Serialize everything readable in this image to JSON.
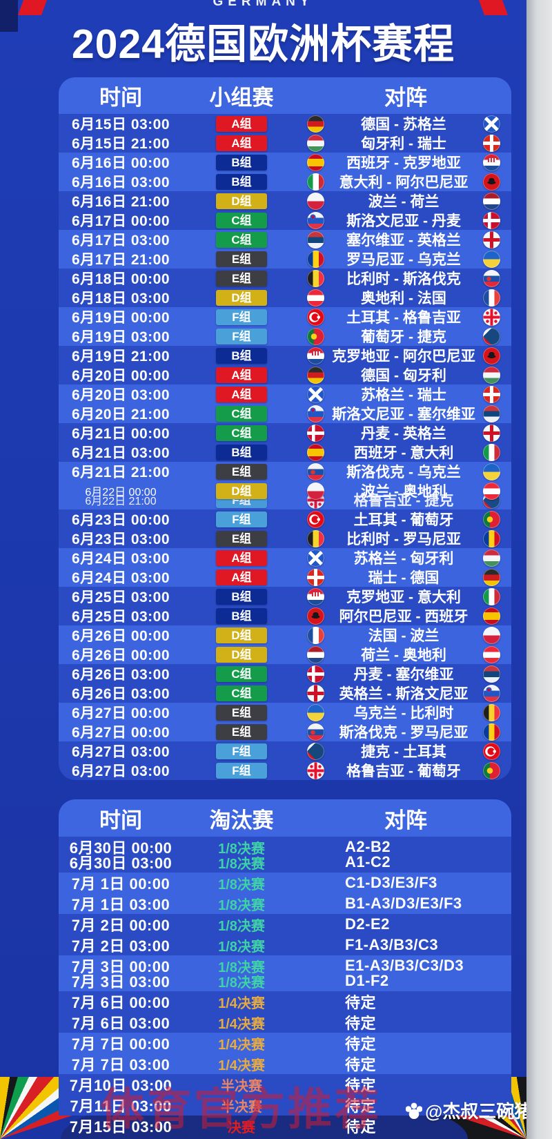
{
  "meta": {
    "germany_label": "GERMANY",
    "title": "2024德国欧洲杯赛程"
  },
  "colors": {
    "poster_blue": "#1c38ac",
    "panel_header_blue": "#3e66e0",
    "row_dark_blue": "#2a4bc4",
    "row_light_blue": "#3c64de",
    "accent_red": "#e01823"
  },
  "group_section": {
    "headers": [
      "时间",
      "小组赛",
      "对阵"
    ],
    "group_colors": {
      "A组": "#e01823",
      "B组": "#0c2b95",
      "C组": "#149c4b",
      "D组": "#d2b018",
      "E组": "#3d3d44",
      "F组": "#4aa0d8"
    },
    "rows": [
      {
        "time": "6月15日 03:00",
        "group": "A组",
        "match": "德国 - 苏格兰",
        "home": "germany",
        "away": "scotland"
      },
      {
        "time": "6月15日 21:00",
        "group": "A组",
        "match": "匈牙利 - 瑞士",
        "home": "hungary",
        "away": "switzerland"
      },
      {
        "time": "6月16日 00:00",
        "group": "B组",
        "match": "西班牙 - 克罗地亚",
        "home": "spain",
        "away": "croatia"
      },
      {
        "time": "6月16日 03:00",
        "group": "B组",
        "match": "意大利 - 阿尔巴尼亚",
        "home": "italy",
        "away": "albania"
      },
      {
        "time": "6月16日 21:00",
        "group": "D组",
        "match": "波兰 - 荷兰",
        "home": "poland",
        "away": "netherlands"
      },
      {
        "time": "6月17日 00:00",
        "group": "C组",
        "match": "斯洛文尼亚 - 丹麦",
        "home": "slovenia",
        "away": "denmark"
      },
      {
        "time": "6月17日 03:00",
        "group": "C组",
        "match": "塞尔维亚 - 英格兰",
        "home": "serbia",
        "away": "england"
      },
      {
        "time": "6月17日 21:00",
        "group": "E组",
        "match": "罗马尼亚 - 乌克兰",
        "home": "romania",
        "away": "ukraine"
      },
      {
        "time": "6月18日 00:00",
        "group": "E组",
        "match": "比利时 - 斯洛伐克",
        "home": "belgium",
        "away": "slovakia"
      },
      {
        "time": "6月18日 03:00",
        "group": "D组",
        "match": "奥地利 - 法国",
        "home": "austria",
        "away": "france"
      },
      {
        "time": "6月19日 00:00",
        "group": "F组",
        "match": "土耳其 - 格鲁吉亚",
        "home": "turkey",
        "away": "georgia"
      },
      {
        "time": "6月19日 03:00",
        "group": "F组",
        "match": "葡萄牙 - 捷克",
        "home": "portugal",
        "away": "czech"
      },
      {
        "time": "6月19日 21:00",
        "group": "B组",
        "match": "克罗地亚 - 阿尔巴尼亚",
        "home": "croatia",
        "away": "albania"
      },
      {
        "time": "6月20日 00:00",
        "group": "A组",
        "match": "德国 - 匈牙利",
        "home": "germany",
        "away": "hungary"
      },
      {
        "time": "6月20日 03:00",
        "group": "A组",
        "match": "苏格兰 - 瑞士",
        "home": "scotland",
        "away": "switzerland"
      },
      {
        "time": "6月20日 21:00",
        "group": "C组",
        "match": "斯洛文尼亚 - 塞尔维亚",
        "home": "slovenia",
        "away": "serbia"
      },
      {
        "time": "6月21日 00:00",
        "group": "C组",
        "match": "丹麦 - 英格兰",
        "home": "denmark",
        "away": "england"
      },
      {
        "time": "6月21日 03:00",
        "group": "B组",
        "match": "西班牙 - 意大利",
        "home": "spain",
        "away": "italy"
      },
      {
        "time": "6月21日 21:00",
        "group": "E组",
        "match": "斯洛伐克 - 乌克兰",
        "home": "slovakia",
        "away": "ukraine"
      },
      {
        "time": "6月22日 00:00",
        "group": "D组",
        "match": "波兰 - 奥地利",
        "home": "poland",
        "away": "austria",
        "overlay": {
          "time": "6月22日 21:00",
          "group": "F组",
          "match": "格鲁吉亚 - 捷克",
          "home": "georgia",
          "away": "czech"
        }
      },
      {
        "time": "6月23日 00:00",
        "group": "F组",
        "match": "土耳其 - 葡萄牙",
        "home": "turkey",
        "away": "portugal"
      },
      {
        "time": "6月23日 03:00",
        "group": "E组",
        "match": "比利时 - 罗马尼亚",
        "home": "belgium",
        "away": "romania"
      },
      {
        "time": "6月24日 03:00",
        "group": "A组",
        "match": "苏格兰 - 匈牙利",
        "home": "scotland",
        "away": "hungary"
      },
      {
        "time": "6月24日 03:00",
        "group": "A组",
        "match": "瑞士 - 德国",
        "home": "switzerland",
        "away": "germany"
      },
      {
        "time": "6月25日 03:00",
        "group": "B组",
        "match": "克罗地亚 - 意大利",
        "home": "croatia",
        "away": "italy"
      },
      {
        "time": "6月25日 03:00",
        "group": "B组",
        "match": "阿尔巴尼亚 - 西班牙",
        "home": "albania",
        "away": "spain"
      },
      {
        "time": "6月26日 00:00",
        "group": "D组",
        "match": "法国 - 波兰",
        "home": "france",
        "away": "poland"
      },
      {
        "time": "6月26日 00:00",
        "group": "D组",
        "match": "荷兰 - 奥地利",
        "home": "netherlands",
        "away": "austria"
      },
      {
        "time": "6月26日 03:00",
        "group": "C组",
        "match": "丹麦 - 塞尔维亚",
        "home": "denmark",
        "away": "serbia"
      },
      {
        "time": "6月26日 03:00",
        "group": "C组",
        "match": "英格兰 - 斯洛文尼亚",
        "home": "england",
        "away": "slovenia"
      },
      {
        "time": "6月27日 00:00",
        "group": "E组",
        "match": "乌克兰 - 比利时",
        "home": "ukraine",
        "away": "belgium"
      },
      {
        "time": "6月27日 00:00",
        "group": "E组",
        "match": "斯洛伐克 - 罗马尼亚",
        "home": "slovakia",
        "away": "romania"
      },
      {
        "time": "6月27日 03:00",
        "group": "F组",
        "match": "捷克 - 土耳其",
        "home": "czech",
        "away": "turkey"
      },
      {
        "time": "6月27日 03:00",
        "group": "F组",
        "match": "格鲁吉亚 - 葡萄牙",
        "home": "georgia",
        "away": "portugal"
      }
    ]
  },
  "knockout_section": {
    "headers": [
      "时间",
      "淘汰赛",
      "对阵"
    ],
    "stage_colors": {
      "r16": "#3ed2a6",
      "qf": "#e5ab43",
      "sf": "#e98465",
      "final": "#e31c1c"
    },
    "rows": [
      {
        "time": "6月30日 00:00",
        "stage": "1/8决赛",
        "stage_type": "r16",
        "opponent": "A2-B2"
      },
      {
        "time": "6月30日 03:00",
        "stage": "1/8决赛",
        "stage_type": "r16",
        "opponent": "A1-C2"
      },
      {
        "time": "7月 1日 00:00",
        "stage": "1/8决赛",
        "stage_type": "r16",
        "opponent": "C1-D3/E3/F3"
      },
      {
        "time": "7月 1日 03:00",
        "stage": "1/8决赛",
        "stage_type": "r16",
        "opponent": "B1-A3/D3/E3/F3"
      },
      {
        "time": "7月 2日 00:00",
        "stage": "1/8决赛",
        "stage_type": "r16",
        "opponent": "D2-E2"
      },
      {
        "time": "7月 2日 03:00",
        "stage": "1/8决赛",
        "stage_type": "r16",
        "opponent": "F1-A3/B3/C3"
      },
      {
        "time": "7月 3日 00:00",
        "stage": "1/8决赛",
        "stage_type": "r16",
        "opponent": "E1-A3/B3/C3/D3"
      },
      {
        "time": "7月 3日 03:00",
        "stage": "1/8决赛",
        "stage_type": "r16",
        "opponent": "D1-F2"
      },
      {
        "time": "7月 6日 00:00",
        "stage": "1/4决赛",
        "stage_type": "qf",
        "opponent": "待定"
      },
      {
        "time": "7月 6日 03:00",
        "stage": "1/4决赛",
        "stage_type": "qf",
        "opponent": "待定"
      },
      {
        "time": "7月 7日 00:00",
        "stage": "1/4决赛",
        "stage_type": "qf",
        "opponent": "待定"
      },
      {
        "time": "7月 7日 03:00",
        "stage": "1/4决赛",
        "stage_type": "qf",
        "opponent": "待定"
      },
      {
        "time": "7月10日 03:00",
        "stage": "半决赛",
        "stage_type": "sf",
        "opponent": "待定"
      },
      {
        "time": "7月11日 03:00",
        "stage": "半决赛",
        "stage_type": "sf",
        "opponent": "待定"
      },
      {
        "time": "7月15日 03:00",
        "stage": "决赛",
        "stage_type": "final",
        "opponent": "待定"
      }
    ]
  },
  "watermarks": {
    "overlay_text": "体育官方推荐",
    "credit_text": "@杰叔三碗猪手面"
  }
}
